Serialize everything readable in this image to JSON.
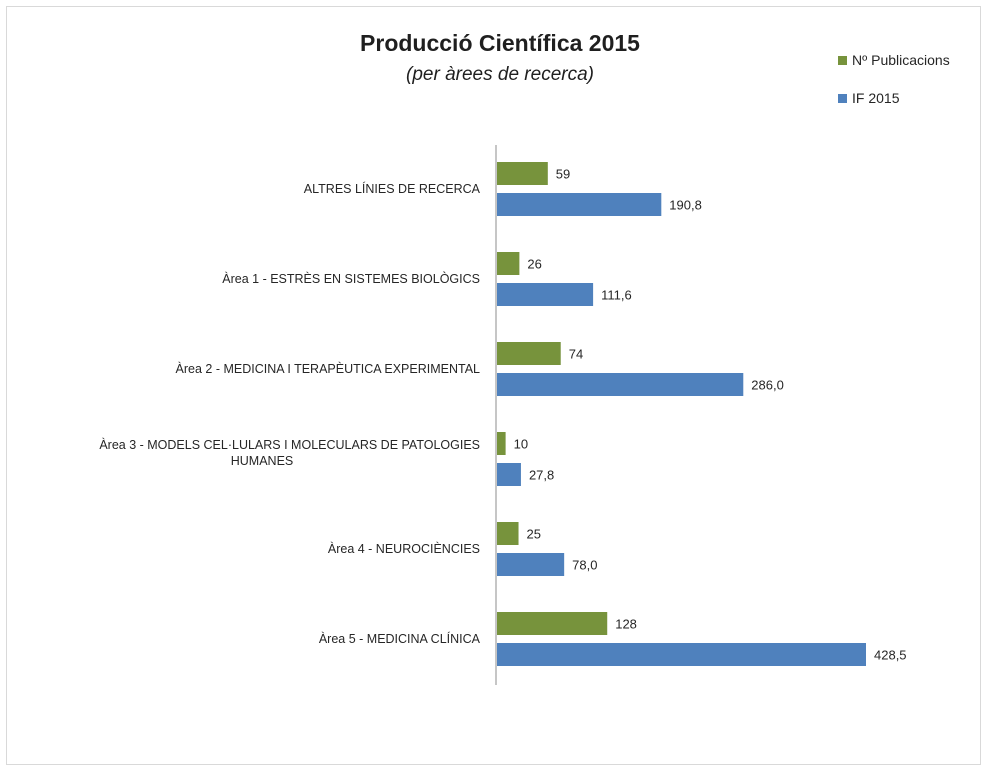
{
  "chart_data": {
    "type": "bar",
    "orientation": "horizontal",
    "title": "Producció Científica 2015",
    "subtitle": "(per àrees de recerca)",
    "categories": [
      [
        "ALTRES LÍNIES DE RECERCA"
      ],
      [
        "Àrea 1 - ESTRÈS EN SISTEMES BIOLÒGICS"
      ],
      [
        "Àrea 2 - MEDICINA I TERAPÈUTICA EXPERIMENTAL"
      ],
      [
        "Àrea 3 - MODELS CEL·LULARS I MOLECULARS DE PATOLOGIES",
        "HUMANES"
      ],
      [
        "Àrea 4 - NEUROCIÈNCIES"
      ],
      [
        "Àrea 5 - MEDICINA CLÍNICA"
      ]
    ],
    "series": [
      {
        "name": "Nº Publicacions",
        "color": "#77933c",
        "values": [
          59,
          26,
          74,
          10,
          25,
          128
        ],
        "labels": [
          "59",
          "26",
          "74",
          "10",
          "25",
          "128"
        ]
      },
      {
        "name": "IF 2015",
        "color": "#4f81bd",
        "values": [
          190.8,
          111.6,
          286.0,
          27.8,
          78.0,
          428.5
        ],
        "labels": [
          "190,8",
          "111,6",
          "286,0",
          "27,8",
          "78,0",
          "428,5"
        ]
      }
    ],
    "xlim": [
      0,
      428.5
    ],
    "grid": false,
    "legend_position": "top-right"
  }
}
